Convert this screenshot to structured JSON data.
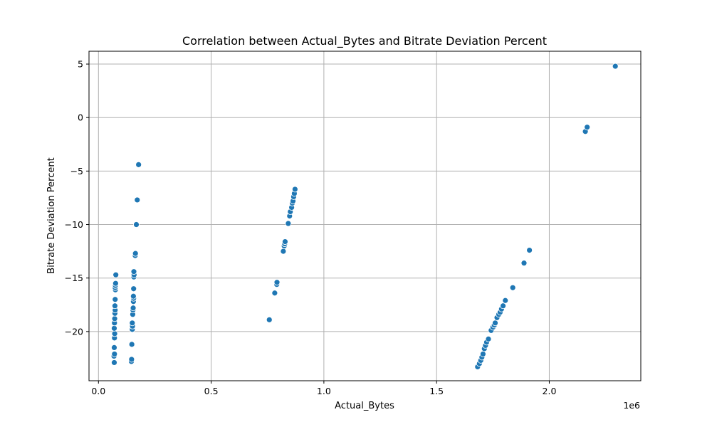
{
  "chart_data": {
    "type": "scatter",
    "title": "Correlation between Actual_Bytes and Bitrate Deviation Percent",
    "xlabel": "Actual_Bytes",
    "ylabel": "Bitrate Deviation Percent",
    "x_offset_text": "1e6",
    "x_scale": 1000000,
    "xlim": [
      -0.042,
      2.406
    ],
    "ylim": [
      -24.6,
      6.2
    ],
    "x_ticks": [
      0.0,
      0.5,
      1.0,
      1.5,
      2.0
    ],
    "x_tick_labels": [
      "0.0",
      "0.5",
      "1.0",
      "1.5",
      "2.0"
    ],
    "y_ticks": [
      5,
      0,
      -5,
      -10,
      -15,
      -20
    ],
    "y_tick_labels": [
      "5",
      "0",
      "−5",
      "−10",
      "−15",
      "−20"
    ],
    "grid": true,
    "marker_color": "#1f77b4",
    "series": [
      {
        "points": [
          [
            0.07,
            -22.9
          ],
          [
            0.069,
            -22.3
          ],
          [
            0.071,
            -22.1
          ],
          [
            0.07,
            -21.5
          ],
          [
            0.071,
            -20.6
          ],
          [
            0.072,
            -20.2
          ],
          [
            0.07,
            -19.7
          ],
          [
            0.071,
            -19.2
          ],
          [
            0.072,
            -18.8
          ],
          [
            0.073,
            -18.3
          ],
          [
            0.074,
            -18.0
          ],
          [
            0.073,
            -17.6
          ],
          [
            0.074,
            -17.0
          ],
          [
            0.075,
            -16.1
          ],
          [
            0.074,
            -15.9
          ],
          [
            0.075,
            -15.7
          ],
          [
            0.076,
            -15.5
          ],
          [
            0.077,
            -14.7
          ],
          [
            0.146,
            -22.8
          ],
          [
            0.147,
            -22.6
          ],
          [
            0.148,
            -21.2
          ],
          [
            0.15,
            -19.8
          ],
          [
            0.151,
            -19.5
          ],
          [
            0.15,
            -19.2
          ],
          [
            0.152,
            -18.4
          ],
          [
            0.153,
            -18.0
          ],
          [
            0.154,
            -17.8
          ],
          [
            0.155,
            -17.2
          ],
          [
            0.156,
            -16.9
          ],
          [
            0.155,
            -16.7
          ],
          [
            0.156,
            -16.0
          ],
          [
            0.157,
            -14.9
          ],
          [
            0.158,
            -14.7
          ],
          [
            0.157,
            -14.4
          ],
          [
            0.163,
            -12.9
          ],
          [
            0.164,
            -12.7
          ],
          [
            0.168,
            -10.0
          ],
          [
            0.172,
            -7.7
          ],
          [
            0.178,
            -4.4
          ],
          [
            0.758,
            -18.9
          ],
          [
            0.782,
            -16.4
          ],
          [
            0.791,
            -15.6
          ],
          [
            0.792,
            -15.4
          ],
          [
            0.82,
            -12.5
          ],
          [
            0.824,
            -12.0
          ],
          [
            0.826,
            -11.8
          ],
          [
            0.828,
            -11.6
          ],
          [
            0.842,
            -9.9
          ],
          [
            0.848,
            -9.2
          ],
          [
            0.851,
            -8.8
          ],
          [
            0.857,
            -8.4
          ],
          [
            0.86,
            -8.0
          ],
          [
            0.863,
            -7.8
          ],
          [
            0.866,
            -7.4
          ],
          [
            0.869,
            -7.1
          ],
          [
            0.872,
            -6.7
          ],
          [
            1.682,
            -23.3
          ],
          [
            1.69,
            -23.0
          ],
          [
            1.696,
            -22.7
          ],
          [
            1.701,
            -22.4
          ],
          [
            1.706,
            -22.1
          ],
          [
            1.712,
            -21.6
          ],
          [
            1.717,
            -21.3
          ],
          [
            1.722,
            -21.0
          ],
          [
            1.73,
            -20.7
          ],
          [
            1.742,
            -19.9
          ],
          [
            1.75,
            -19.6
          ],
          [
            1.756,
            -19.4
          ],
          [
            1.76,
            -19.2
          ],
          [
            1.768,
            -18.7
          ],
          [
            1.776,
            -18.4
          ],
          [
            1.782,
            -18.2
          ],
          [
            1.788,
            -17.9
          ],
          [
            1.795,
            -17.6
          ],
          [
            1.805,
            -17.1
          ],
          [
            1.838,
            -15.9
          ],
          [
            1.888,
            -13.6
          ],
          [
            1.912,
            -12.4
          ],
          [
            2.16,
            -1.3
          ],
          [
            2.168,
            -0.9
          ],
          [
            2.293,
            4.8
          ]
        ]
      }
    ]
  }
}
